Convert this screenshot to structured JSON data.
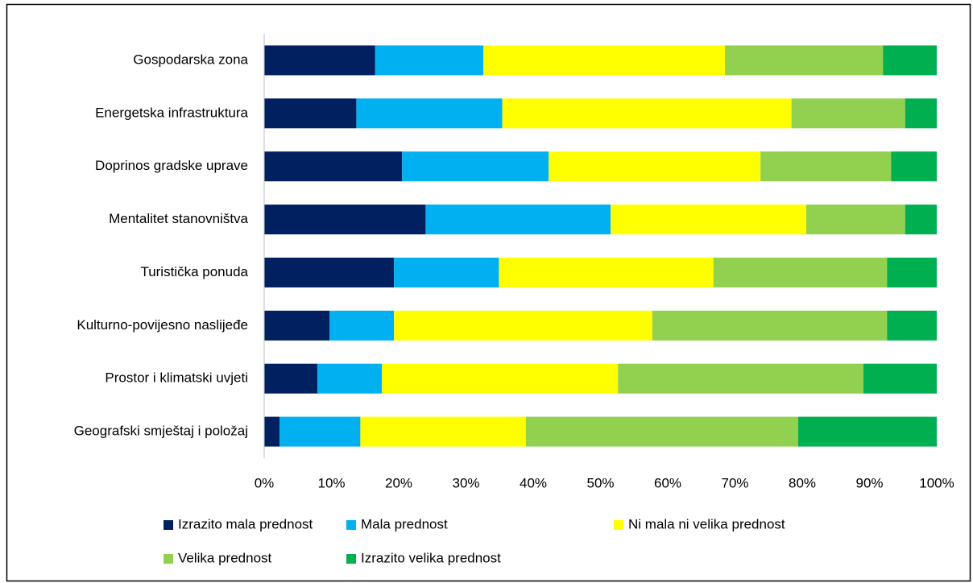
{
  "chart_data": {
    "type": "stacked_bar_horizontal",
    "categories": [
      "Gospodarska zona",
      "Energetska infrastruktura",
      "Doprinos gradske uprave",
      "Mentalitet stanovništva",
      "Turistička ponuda",
      "Kulturno-povijesno naslijeđe",
      "Prostor i klimatski uvjeti",
      "Geografski smještaj i položaj"
    ],
    "series": [
      {
        "name": "Izrazito mala prednost",
        "color": "#002060",
        "values": [
          16.5,
          13.7,
          20.5,
          24.0,
          19.3,
          9.7,
          7.9,
          2.3
        ]
      },
      {
        "name": "Mala prednost",
        "color": "#00b0f0",
        "values": [
          16.1,
          21.7,
          21.8,
          27.5,
          15.6,
          9.6,
          9.6,
          12.0
        ]
      },
      {
        "name": "Ni mala ni velika prednost",
        "color": "#ffff00",
        "values": [
          35.9,
          43.0,
          31.5,
          29.1,
          31.9,
          38.4,
          35.1,
          24.6
        ]
      },
      {
        "name": "Velika prednost",
        "color": "#92d050",
        "values": [
          23.5,
          16.9,
          19.4,
          14.7,
          25.8,
          34.9,
          36.5,
          40.5
        ]
      },
      {
        "name": "Izrazito velika prednost",
        "color": "#00b050",
        "values": [
          8.0,
          4.7,
          6.8,
          4.7,
          7.4,
          7.4,
          10.9,
          20.6
        ]
      }
    ],
    "xlim": [
      0,
      100
    ],
    "xticks": [
      {
        "value": 0,
        "label": "0%"
      },
      {
        "value": 10,
        "label": "10%"
      },
      {
        "value": 20,
        "label": "20%"
      },
      {
        "value": 30,
        "label": "30%"
      },
      {
        "value": 40,
        "label": "40%"
      },
      {
        "value": 50,
        "label": "50%"
      },
      {
        "value": 60,
        "label": "60%"
      },
      {
        "value": 70,
        "label": "70%"
      },
      {
        "value": 80,
        "label": "80%"
      },
      {
        "value": 90,
        "label": "90%"
      },
      {
        "value": 100,
        "label": "100%"
      }
    ],
    "grid": false,
    "legend": "bottom"
  }
}
